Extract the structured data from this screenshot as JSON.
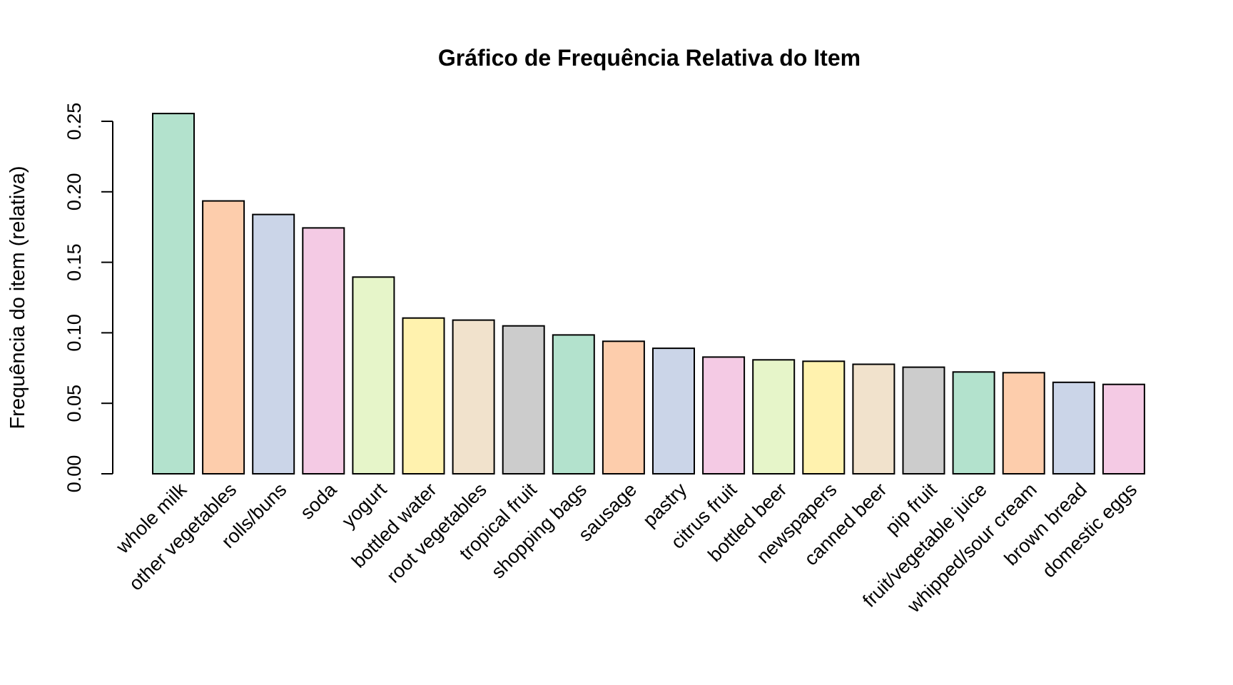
{
  "chart_data": {
    "type": "bar",
    "title": "Gráfico de Frequência Relativa do Item",
    "xlabel": "",
    "ylabel": "Frequência do item (relativa)",
    "ylim": [
      0,
      0.27
    ],
    "yticks": [
      "0.00",
      "0.05",
      "0.10",
      "0.15",
      "0.20",
      "0.25"
    ],
    "grid": false,
    "categories": [
      "whole milk",
      "other vegetables",
      "rolls/buns",
      "soda",
      "yogurt",
      "bottled water",
      "root vegetables",
      "tropical fruit",
      "shopping bags",
      "sausage",
      "pastry",
      "citrus fruit",
      "bottled beer",
      "newspapers",
      "canned beer",
      "pip fruit",
      "fruit/vegetable juice",
      "whipped/sour cream",
      "brown bread",
      "domestic eggs"
    ],
    "values": [
      0.2555,
      0.1935,
      0.1839,
      0.1744,
      0.1395,
      0.1105,
      0.109,
      0.1049,
      0.0985,
      0.094,
      0.089,
      0.0828,
      0.0808,
      0.0798,
      0.0777,
      0.0756,
      0.0722,
      0.0717,
      0.0649,
      0.0634
    ],
    "colors": [
      "#B3E2CD",
      "#FDCDAC",
      "#CBD5E8",
      "#F4CAE4",
      "#E6F5C9",
      "#FFF2AE",
      "#F1E2CC",
      "#CCCCCC",
      "#B3E2CD",
      "#FDCDAC",
      "#CBD5E8",
      "#F4CAE4",
      "#E6F5C9",
      "#FFF2AE",
      "#F1E2CC",
      "#CCCCCC",
      "#B3E2CD",
      "#FDCDAC",
      "#CBD5E8",
      "#F4CAE4"
    ]
  }
}
